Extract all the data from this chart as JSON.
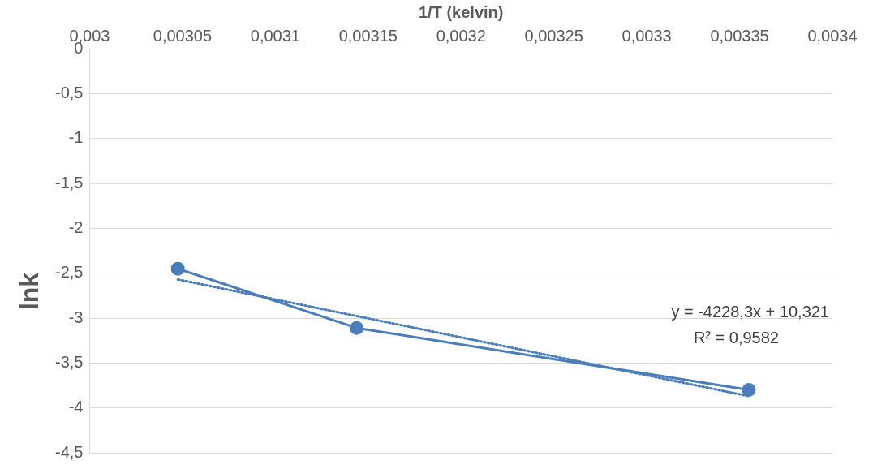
{
  "chart_data": {
    "type": "line",
    "xlabel": "1/T (kelvin)",
    "ylabel": "lnk",
    "series": [
      {
        "type": "line",
        "color": "#4a7ebb",
        "x": [
          0.0030475,
          0.0031438,
          0.003355
        ],
        "values": [
          -2.45,
          -3.11,
          -3.8
        ],
        "marker": "circle",
        "line_style": "solid"
      },
      {
        "type": "line",
        "color": "#4a7ebb",
        "x": [
          0.0030475,
          0.003355
        ],
        "values": [
          -2.57,
          -3.87
        ],
        "marker": "none",
        "line_style": "dotted"
      }
    ],
    "xlim": [
      0.003,
      0.0034
    ],
    "xticks": [
      {
        "value": 0.003,
        "label": "0,003"
      },
      {
        "value": 0.00305,
        "label": "0,00305"
      },
      {
        "value": 0.0031,
        "label": "0,0031"
      },
      {
        "value": 0.00315,
        "label": "0,00315"
      },
      {
        "value": 0.0032,
        "label": "0,0032"
      },
      {
        "value": 0.00325,
        "label": "0,00325"
      },
      {
        "value": 0.0033,
        "label": "0,0033"
      },
      {
        "value": 0.00335,
        "label": "0,00335"
      },
      {
        "value": 0.0034,
        "label": "0,0034"
      }
    ],
    "ylim": [
      -4.5,
      0
    ],
    "yticks": [
      {
        "value": 0,
        "label": "0"
      },
      {
        "value": -0.5,
        "label": "-0,5"
      },
      {
        "value": -1,
        "label": "-1"
      },
      {
        "value": -1.5,
        "label": "-1,5"
      },
      {
        "value": -2,
        "label": "-2"
      },
      {
        "value": -2.5,
        "label": "-2,5"
      },
      {
        "value": -3,
        "label": "-3"
      },
      {
        "value": -3.5,
        "label": "-3,5"
      },
      {
        "value": -4,
        "label": "-4"
      },
      {
        "value": -4.5,
        "label": "-4,5"
      }
    ],
    "grid": "y",
    "legend": false,
    "annotations": [
      "y = -4228,3x + 10,321",
      "R² = 0,9582"
    ]
  }
}
